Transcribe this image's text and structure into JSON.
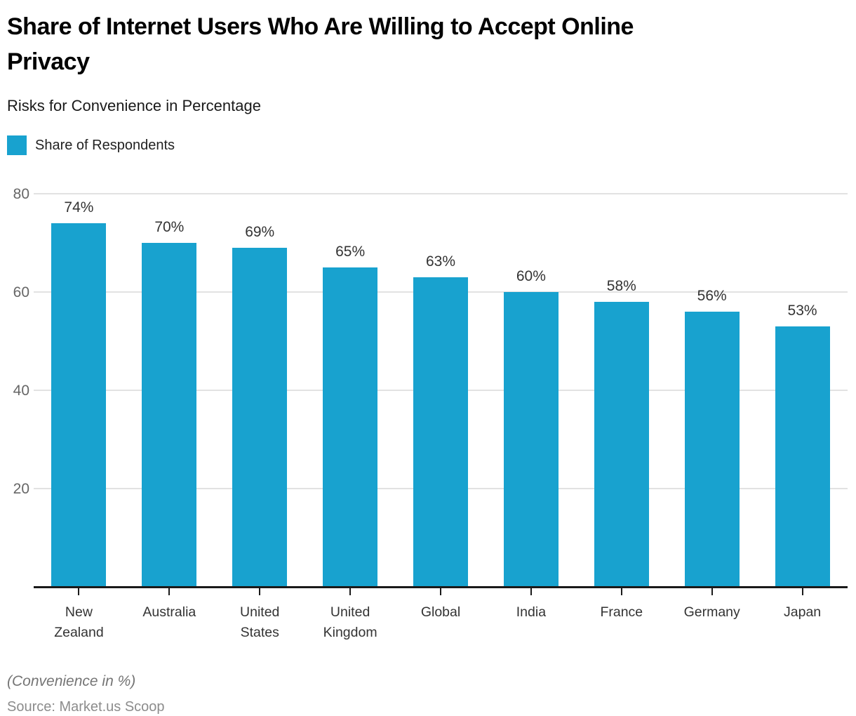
{
  "header": {
    "title": "Share of Internet Users Who Are Willing to Accept Online Privacy",
    "title_lines": [
      "Share of Internet Users Who Are Willing to Accept Online",
      "Privacy"
    ],
    "subtitle": "Risks for Convenience in Percentage"
  },
  "legend": {
    "label": "Share of Respondents",
    "swatch_color": "#18A2CF"
  },
  "chart_data": {
    "type": "bar",
    "title": "Share of Internet Users Who Are Willing to Accept Online Privacy",
    "subtitle": "Risks for Convenience in Percentage",
    "categories": [
      "New Zealand",
      "Australia",
      "United States",
      "United Kingdom",
      "Global",
      "India",
      "France",
      "Germany",
      "Japan"
    ],
    "series": [
      {
        "name": "Share of Respondents",
        "values": [
          74,
          70,
          69,
          65,
          63,
          60,
          58,
          56,
          53
        ],
        "labels": [
          "74%",
          "70%",
          "69%",
          "65%",
          "63%",
          "60%",
          "58%",
          "56%",
          "53%"
        ]
      }
    ],
    "xlabel": "",
    "ylabel": "",
    "ylim": [
      0,
      80
    ],
    "yticks": [
      20,
      40,
      60,
      80
    ],
    "grid": true,
    "legend_position": "top-left",
    "bar_color": "#18A2CF",
    "colors": {
      "bar": "#18A2CF",
      "gridline": "#e2e2e2",
      "axis": "#1a1a1a",
      "ytick_text": "#666666",
      "value_label_text": "#333333"
    }
  },
  "footer": {
    "note": "(Convenience in %)",
    "source": "Source: Market.us Scoop"
  }
}
